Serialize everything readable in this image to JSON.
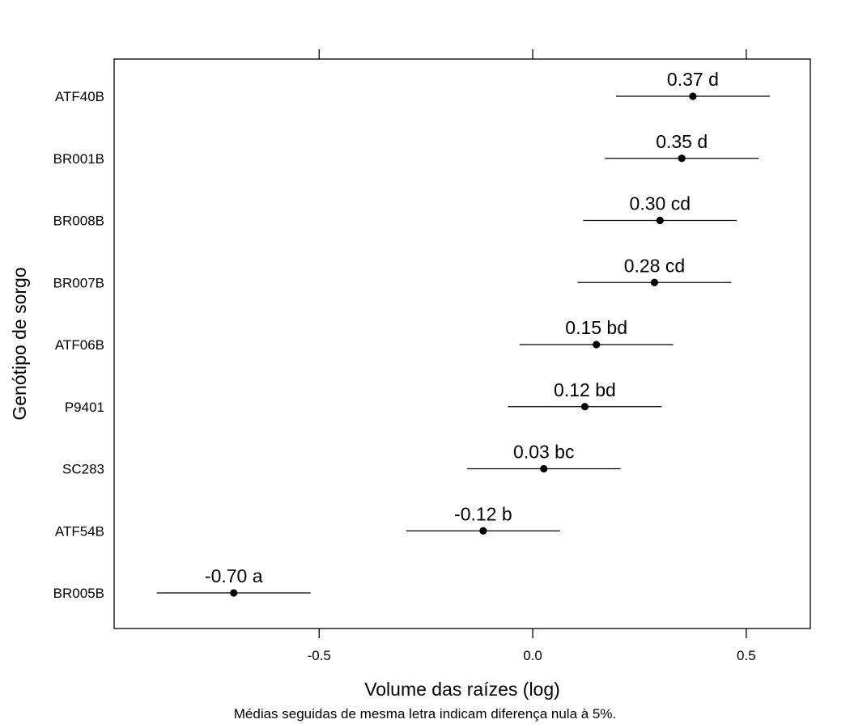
{
  "chart_data": {
    "type": "scatter",
    "orientation": "horizontal",
    "xlabel": "Volume das raízes (log)",
    "ylabel": "Genótipo de sorgo",
    "caption": "Médias seguidas de mesma letra indicam diferença nula à 5%.",
    "xlim": [
      -0.98,
      0.65
    ],
    "xticks": [
      -0.5,
      0.0,
      0.5
    ],
    "xtick_labels": [
      "-0.5",
      "0.0",
      "0.5"
    ],
    "grid": false,
    "legend": "none",
    "categories": [
      "ATF40B",
      "BR001B",
      "BR008B",
      "BR007B",
      "ATF06B",
      "P9401",
      "SC283",
      "ATF54B",
      "BR005B"
    ],
    "series": [
      {
        "estimates": [
          0.375,
          0.349,
          0.298,
          0.285,
          0.149,
          0.122,
          0.026,
          -0.116,
          -0.7
        ],
        "lower": [
          0.195,
          0.169,
          0.118,
          0.105,
          -0.031,
          -0.058,
          -0.154,
          -0.296,
          -0.88
        ],
        "upper": [
          0.555,
          0.529,
          0.478,
          0.465,
          0.329,
          0.302,
          0.206,
          0.064,
          -0.52
        ],
        "labels": [
          "0.37 d",
          "0.35 d",
          "0.30 cd",
          "0.28 cd",
          "0.15 bd",
          "0.12 bd",
          "0.03 bc",
          "-0.12 b",
          "-0.70 a"
        ]
      }
    ]
  }
}
